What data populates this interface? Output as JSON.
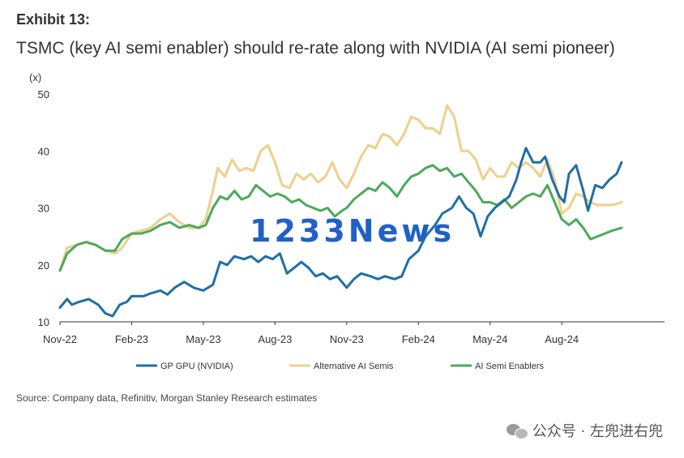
{
  "header": {
    "exhibit": "Exhibit 13:",
    "title": "TSMC (key AI semi enabler) should re-rate along with NVIDIA (AI semi pioneer)"
  },
  "footer": {
    "source": "Source: Company data, Refinitiv, Morgan Stanley Research estimates",
    "brand": "公众号 · 左兜进右兜"
  },
  "watermark": "1233News",
  "chart_data": {
    "type": "line",
    "ylabel": "(x)",
    "ylim": [
      10,
      50
    ],
    "yticks": [
      10,
      20,
      30,
      40,
      50
    ],
    "xlim": [
      0,
      25.3
    ],
    "xticks": [
      {
        "label": "Nov-22",
        "x": 0
      },
      {
        "label": "Feb-23",
        "x": 3
      },
      {
        "label": "May-23",
        "x": 6
      },
      {
        "label": "Aug-23",
        "x": 9
      },
      {
        "label": "Nov-23",
        "x": 12
      },
      {
        "label": "Feb-24",
        "x": 15
      },
      {
        "label": "May-24",
        "x": 18
      },
      {
        "label": "Aug-24",
        "x": 21
      }
    ],
    "legend_position": "bottom",
    "series": [
      {
        "name": "GP GPU (NVIDIA)",
        "color": "#1f6fa6",
        "points": [
          [
            0,
            12.5
          ],
          [
            0.3,
            14
          ],
          [
            0.5,
            13
          ],
          [
            0.8,
            13.5
          ],
          [
            1.2,
            14
          ],
          [
            1.6,
            13
          ],
          [
            1.9,
            11.5
          ],
          [
            2.2,
            11
          ],
          [
            2.5,
            13
          ],
          [
            2.8,
            13.5
          ],
          [
            3,
            14.5
          ],
          [
            3.5,
            14.5
          ],
          [
            3.8,
            15
          ],
          [
            4.2,
            15.5
          ],
          [
            4.5,
            14.8
          ],
          [
            4.8,
            16
          ],
          [
            5.2,
            17
          ],
          [
            5.6,
            16
          ],
          [
            6,
            15.5
          ],
          [
            6.4,
            16.5
          ],
          [
            6.7,
            20.5
          ],
          [
            7,
            20
          ],
          [
            7.3,
            21.5
          ],
          [
            7.7,
            21
          ],
          [
            8,
            21.5
          ],
          [
            8.3,
            20.5
          ],
          [
            8.6,
            21.5
          ],
          [
            8.9,
            21
          ],
          [
            9.2,
            22
          ],
          [
            9.5,
            18.5
          ],
          [
            9.8,
            19.5
          ],
          [
            10.1,
            20.5
          ],
          [
            10.4,
            19.5
          ],
          [
            10.7,
            18
          ],
          [
            11,
            18.5
          ],
          [
            11.3,
            17.5
          ],
          [
            11.6,
            18
          ],
          [
            12,
            16
          ],
          [
            12.3,
            17.5
          ],
          [
            12.6,
            18.5
          ],
          [
            13,
            18
          ],
          [
            13.3,
            17.5
          ],
          [
            13.6,
            18
          ],
          [
            14,
            17.5
          ],
          [
            14.3,
            18
          ],
          [
            14.6,
            21
          ],
          [
            15,
            22.5
          ],
          [
            15.3,
            25
          ],
          [
            15.7,
            27
          ],
          [
            16,
            29
          ],
          [
            16.4,
            30
          ],
          [
            16.7,
            32
          ],
          [
            17,
            30
          ],
          [
            17.3,
            29
          ],
          [
            17.6,
            25
          ],
          [
            17.9,
            28.5
          ],
          [
            18.2,
            30
          ],
          [
            18.5,
            31
          ],
          [
            18.8,
            32
          ],
          [
            19.1,
            35
          ],
          [
            19.3,
            38
          ],
          [
            19.5,
            40.5
          ],
          [
            19.8,
            38
          ],
          [
            20.1,
            38
          ],
          [
            20.3,
            39
          ],
          [
            20.6,
            35
          ],
          [
            20.9,
            32
          ],
          [
            21.1,
            31
          ],
          [
            21.3,
            36
          ],
          [
            21.6,
            37.5
          ],
          [
            21.9,
            33
          ],
          [
            22.1,
            29.5
          ],
          [
            22.4,
            34
          ],
          [
            22.7,
            33.5
          ],
          [
            23,
            35
          ],
          [
            23.3,
            36
          ],
          [
            23.5,
            38
          ]
        ]
      },
      {
        "name": "Alternative AI Semis",
        "color": "#f0cf8c",
        "points": [
          [
            0,
            19
          ],
          [
            0.3,
            23
          ],
          [
            0.7,
            23.5
          ],
          [
            1.1,
            24
          ],
          [
            1.5,
            23.5
          ],
          [
            1.9,
            22.5
          ],
          [
            2.3,
            22
          ],
          [
            2.6,
            23
          ],
          [
            3,
            25.5
          ],
          [
            3.4,
            26
          ],
          [
            3.8,
            26.5
          ],
          [
            4.2,
            28
          ],
          [
            4.6,
            29
          ],
          [
            5,
            27.5
          ],
          [
            5.4,
            26.5
          ],
          [
            5.8,
            26.5
          ],
          [
            6.1,
            28
          ],
          [
            6.4,
            33
          ],
          [
            6.6,
            37
          ],
          [
            6.9,
            35.5
          ],
          [
            7.2,
            38.5
          ],
          [
            7.5,
            36.5
          ],
          [
            7.8,
            37
          ],
          [
            8.1,
            36.5
          ],
          [
            8.4,
            40
          ],
          [
            8.7,
            41
          ],
          [
            9,
            38
          ],
          [
            9.3,
            34
          ],
          [
            9.6,
            33.5
          ],
          [
            9.9,
            36
          ],
          [
            10.2,
            35
          ],
          [
            10.5,
            36
          ],
          [
            10.8,
            34.5
          ],
          [
            11.1,
            35.5
          ],
          [
            11.4,
            38
          ],
          [
            11.7,
            35
          ],
          [
            12,
            33.5
          ],
          [
            12.3,
            36
          ],
          [
            12.6,
            39
          ],
          [
            12.9,
            41
          ],
          [
            13.2,
            40.5
          ],
          [
            13.5,
            43
          ],
          [
            13.8,
            42.5
          ],
          [
            14.1,
            41
          ],
          [
            14.4,
            43
          ],
          [
            14.7,
            46
          ],
          [
            15,
            45.5
          ],
          [
            15.3,
            44
          ],
          [
            15.6,
            44
          ],
          [
            15.9,
            43
          ],
          [
            16.2,
            48
          ],
          [
            16.5,
            46
          ],
          [
            16.8,
            40
          ],
          [
            17.1,
            40
          ],
          [
            17.4,
            38.5
          ],
          [
            17.7,
            35
          ],
          [
            18,
            37
          ],
          [
            18.3,
            35.5
          ],
          [
            18.6,
            35.5
          ],
          [
            18.9,
            38
          ],
          [
            19.2,
            37
          ],
          [
            19.5,
            38
          ],
          [
            19.8,
            37
          ],
          [
            20.1,
            35.5
          ],
          [
            20.4,
            38.5
          ],
          [
            20.7,
            35
          ],
          [
            21,
            29
          ],
          [
            21.3,
            30
          ],
          [
            21.6,
            32.5
          ],
          [
            21.9,
            32
          ],
          [
            22.2,
            31
          ],
          [
            22.5,
            30.5
          ],
          [
            22.8,
            30.5
          ],
          [
            23.1,
            30.5
          ],
          [
            23.5,
            31
          ]
        ]
      },
      {
        "name": "AI Semi Enablers",
        "color": "#4caa5c",
        "points": [
          [
            0,
            19
          ],
          [
            0.3,
            22
          ],
          [
            0.7,
            23.5
          ],
          [
            1.1,
            24
          ],
          [
            1.5,
            23.5
          ],
          [
            1.9,
            22.5
          ],
          [
            2.3,
            22.5
          ],
          [
            2.6,
            24.5
          ],
          [
            3,
            25.5
          ],
          [
            3.4,
            25.5
          ],
          [
            3.8,
            26
          ],
          [
            4.2,
            27
          ],
          [
            4.6,
            27.5
          ],
          [
            5,
            26.5
          ],
          [
            5.4,
            27
          ],
          [
            5.8,
            26.5
          ],
          [
            6.1,
            27
          ],
          [
            6.4,
            30
          ],
          [
            6.7,
            32
          ],
          [
            7,
            31.5
          ],
          [
            7.3,
            33
          ],
          [
            7.6,
            31.5
          ],
          [
            7.9,
            32
          ],
          [
            8.2,
            34
          ],
          [
            8.5,
            33
          ],
          [
            8.8,
            32
          ],
          [
            9.1,
            32.5
          ],
          [
            9.4,
            32
          ],
          [
            9.7,
            31
          ],
          [
            10,
            31.5
          ],
          [
            10.3,
            30.5
          ],
          [
            10.6,
            30
          ],
          [
            10.9,
            29.5
          ],
          [
            11.2,
            30
          ],
          [
            11.5,
            28.5
          ],
          [
            11.8,
            29.5
          ],
          [
            12,
            30
          ],
          [
            12.3,
            31.5
          ],
          [
            12.6,
            32.5
          ],
          [
            12.9,
            33.5
          ],
          [
            13.2,
            33
          ],
          [
            13.5,
            34.5
          ],
          [
            13.8,
            33.5
          ],
          [
            14.1,
            32
          ],
          [
            14.4,
            34
          ],
          [
            14.7,
            35.5
          ],
          [
            15,
            36
          ],
          [
            15.3,
            37
          ],
          [
            15.6,
            37.5
          ],
          [
            15.9,
            36.5
          ],
          [
            16.2,
            37
          ],
          [
            16.5,
            35.5
          ],
          [
            16.8,
            36
          ],
          [
            17.1,
            34.5
          ],
          [
            17.4,
            33
          ],
          [
            17.7,
            31
          ],
          [
            18,
            31
          ],
          [
            18.3,
            30.5
          ],
          [
            18.6,
            31.5
          ],
          [
            18.9,
            30
          ],
          [
            19.2,
            31
          ],
          [
            19.5,
            32
          ],
          [
            19.8,
            32.5
          ],
          [
            20.1,
            32
          ],
          [
            20.4,
            34
          ],
          [
            20.7,
            31
          ],
          [
            21,
            28
          ],
          [
            21.3,
            27
          ],
          [
            21.6,
            28
          ],
          [
            21.9,
            26.5
          ],
          [
            22.2,
            24.5
          ],
          [
            22.5,
            25
          ],
          [
            22.8,
            25.5
          ],
          [
            23.1,
            26
          ],
          [
            23.5,
            26.5
          ]
        ]
      }
    ]
  }
}
